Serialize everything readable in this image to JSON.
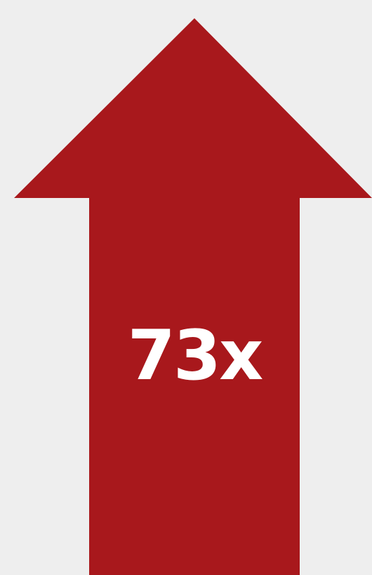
{
  "graphic": {
    "value_text": "73x"
  },
  "colors": {
    "background": "#eeeeee",
    "arrow": "#a8181c",
    "text": "#ffffff"
  }
}
